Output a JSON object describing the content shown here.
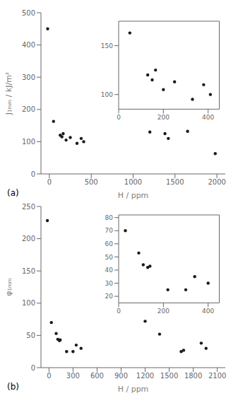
{
  "chart_data": [
    {
      "type": "scatter",
      "annotations": [
        "(a)"
      ],
      "x_label": "H / ppm",
      "y_label": "J₁ₘₘ / kJ/m²",
      "color": "#1a1a1a",
      "x": [
        -20,
        50,
        130,
        150,
        165,
        200,
        250,
        330,
        380,
        410,
        1200,
        1380,
        1420,
        1650,
        1980
      ],
      "values": [
        450,
        163,
        120,
        115,
        125,
        105,
        113,
        95,
        110,
        100,
        130,
        125,
        110,
        132,
        63
      ],
      "xlim": [
        -100,
        2100
      ],
      "ylim": [
        0,
        500
      ],
      "xticks": [
        0,
        500,
        1000,
        1500,
        2000
      ],
      "yticks": [
        0,
        100,
        200,
        300,
        400,
        500
      ]
    },
    {
      "type": "scatter",
      "color": "#1a1a1a",
      "x": [
        50,
        130,
        150,
        165,
        200,
        250,
        330,
        380,
        410
      ],
      "values": [
        163,
        120,
        115,
        125,
        105,
        113,
        95,
        110,
        100
      ],
      "xlim": [
        0,
        450
      ],
      "ylim": [
        85,
        175
      ],
      "xticks": [
        0,
        200,
        400
      ],
      "yticks": [
        100,
        150
      ]
    },
    {
      "type": "scatter",
      "annotations": [
        "(b)"
      ],
      "x_label": "H / ppm",
      "y_label": "φ₁ₘₘ",
      "color": "#1a1a1a",
      "x": [
        -20,
        30,
        90,
        110,
        130,
        140,
        220,
        300,
        340,
        400,
        1200,
        1380,
        1650,
        1680,
        1900,
        1960
      ],
      "values": [
        228,
        70,
        53,
        44,
        42,
        43,
        25,
        25,
        35,
        30,
        72,
        52,
        25,
        27,
        38,
        30
      ],
      "xlim": [
        -100,
        2200
      ],
      "ylim": [
        0,
        250
      ],
      "xticks": [
        0,
        300,
        600,
        900,
        1200,
        1500,
        1800,
        2100
      ],
      "yticks": [
        0,
        50,
        100,
        150,
        200,
        250
      ]
    },
    {
      "type": "scatter",
      "color": "#1a1a1a",
      "x": [
        30,
        90,
        110,
        130,
        140,
        220,
        300,
        340,
        400
      ],
      "values": [
        70,
        53,
        44,
        42,
        43,
        25,
        25,
        35,
        30
      ],
      "xlim": [
        0,
        450
      ],
      "ylim": [
        15,
        82
      ],
      "xticks": [
        0,
        200,
        400
      ],
      "yticks": [
        20,
        30,
        40,
        50,
        60,
        70,
        80
      ]
    }
  ]
}
